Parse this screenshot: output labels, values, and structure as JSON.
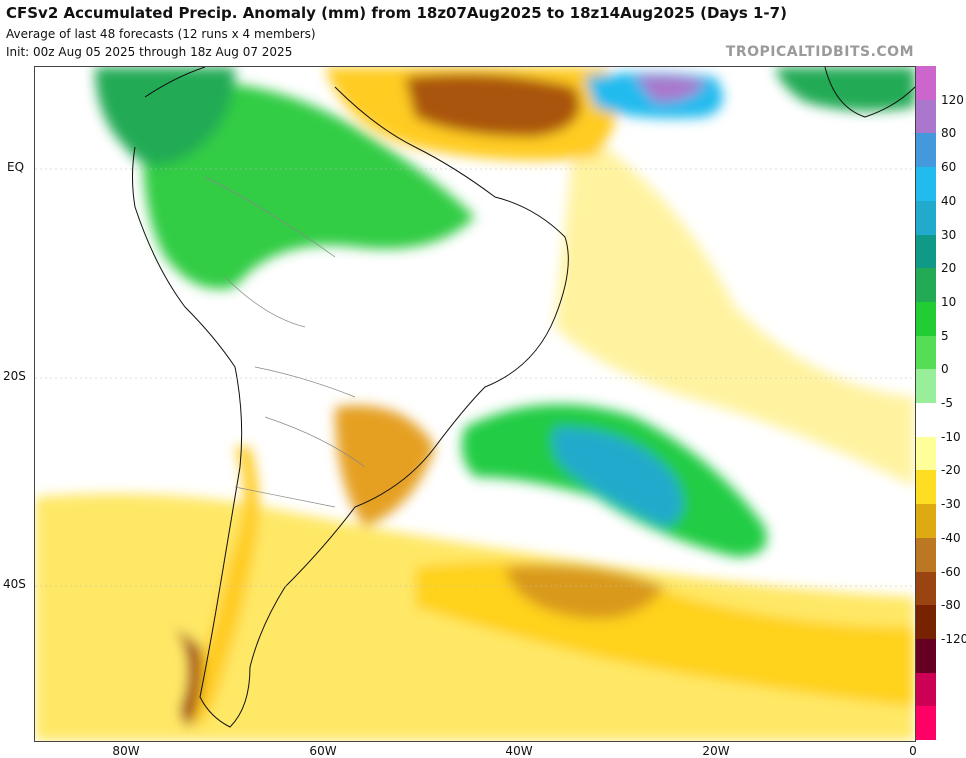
{
  "header": {
    "title": "CFSv2 Accumulated Precip. Anomaly (mm) from 18z07Aug2025 to 18z14Aug2025 (Days 1-7)",
    "subtitle1": "Average of last 48 forecasts (12 runs x 4 members)",
    "subtitle2": "Init: 00z Aug 05 2025 through 18z Aug 07 2025",
    "brand": "TROPICALTIDBITS.COM"
  },
  "axes": {
    "lat_labels": [
      "EQ",
      "20S",
      "40S"
    ],
    "lon_labels": [
      "80W",
      "60W",
      "40W",
      "20W",
      "0"
    ]
  },
  "colorbar": {
    "labels": [
      "120",
      "80",
      "60",
      "40",
      "30",
      "20",
      "10",
      "5",
      "0",
      "-5",
      "-10",
      "-20",
      "-30",
      "-40",
      "-60",
      "-80",
      "-120"
    ],
    "colors": [
      "#cc66cc",
      "#aa77cc",
      "#4499dd",
      "#22bbee",
      "#22aacc",
      "#119988",
      "#22aa55",
      "#22cc33",
      "#55dd55",
      "#99ee99",
      "#ffffff",
      "#ffff99",
      "#ffdd22",
      "#ddaa11",
      "#bb7722",
      "#994411",
      "#772200",
      "#660022",
      "#cc0055",
      "#ff0066"
    ]
  },
  "colors": {
    "ocean": "#ffffff",
    "green": "#22cc33",
    "cyan": "#22aacc",
    "yellow": "#ffdd22",
    "brown": "#994411"
  }
}
